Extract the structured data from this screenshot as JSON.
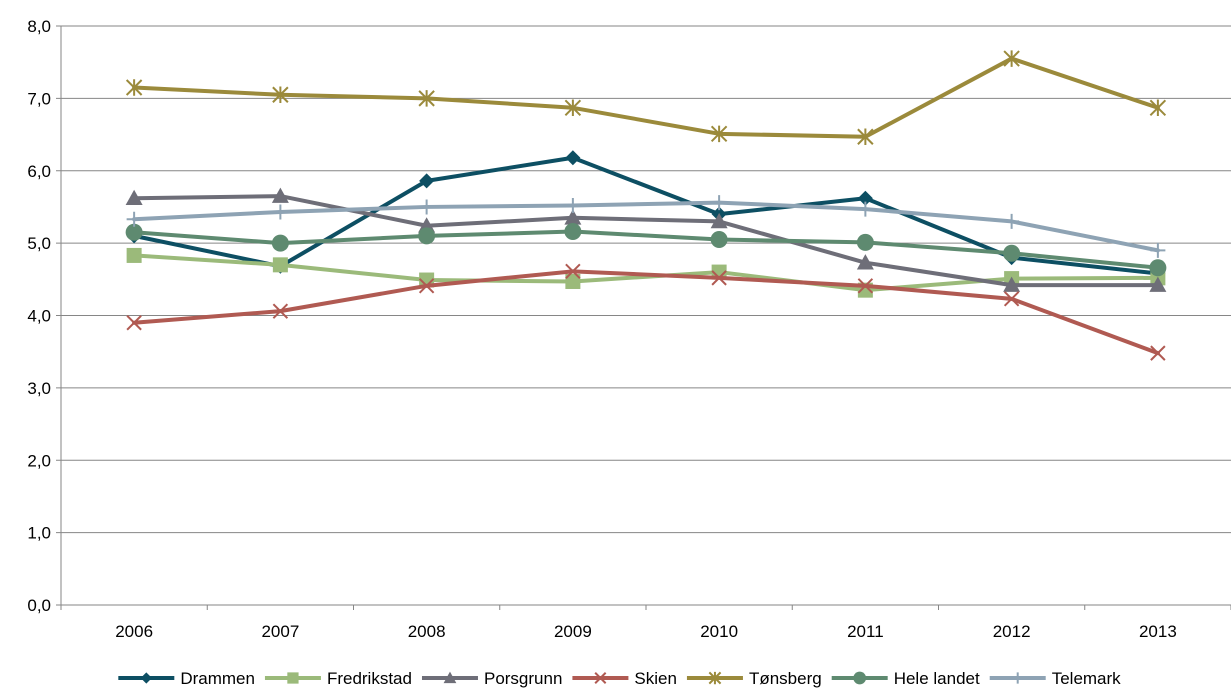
{
  "chart_data": {
    "type": "line",
    "title": "",
    "xlabel": "",
    "ylabel": "",
    "categories": [
      "2006",
      "2007",
      "2008",
      "2009",
      "2010",
      "2011",
      "2012",
      "2013"
    ],
    "ylim": [
      0,
      8
    ],
    "yticks": [
      "0,0",
      "1,0",
      "2,0",
      "3,0",
      "4,0",
      "5,0",
      "6,0",
      "7,0",
      "8,0"
    ],
    "grid": true,
    "legend_position": "bottom",
    "series": [
      {
        "name": "Drammen",
        "color": "#0d4f63",
        "marker": "diamond",
        "values": [
          5.1,
          4.68,
          5.86,
          6.18,
          5.4,
          5.62,
          4.8,
          4.58
        ]
      },
      {
        "name": "Fredrikstad",
        "color": "#9bba7a",
        "marker": "square",
        "values": [
          4.83,
          4.7,
          4.49,
          4.47,
          4.6,
          4.35,
          4.51,
          4.52
        ]
      },
      {
        "name": "Porsgrunn",
        "color": "#6e6e78",
        "marker": "triangle",
        "values": [
          5.62,
          5.65,
          5.24,
          5.35,
          5.3,
          4.73,
          4.42,
          4.42
        ]
      },
      {
        "name": "Skien",
        "color": "#b05a52",
        "marker": "x",
        "values": [
          3.9,
          4.06,
          4.41,
          4.61,
          4.52,
          4.41,
          4.23,
          3.48
        ]
      },
      {
        "name": "Tønsberg",
        "color": "#9b8a3b",
        "marker": "star",
        "values": [
          7.15,
          7.05,
          7.0,
          6.87,
          6.51,
          6.47,
          7.55,
          6.87
        ]
      },
      {
        "name": "Hele landet",
        "color": "#5e8a70",
        "marker": "circle",
        "values": [
          5.15,
          5.0,
          5.1,
          5.16,
          5.05,
          5.01,
          4.86,
          4.66
        ]
      },
      {
        "name": "Telemark",
        "color": "#8ea3b4",
        "marker": "plus",
        "values": [
          5.33,
          5.43,
          5.5,
          5.52,
          5.56,
          5.47,
          5.3,
          4.9
        ]
      }
    ]
  }
}
